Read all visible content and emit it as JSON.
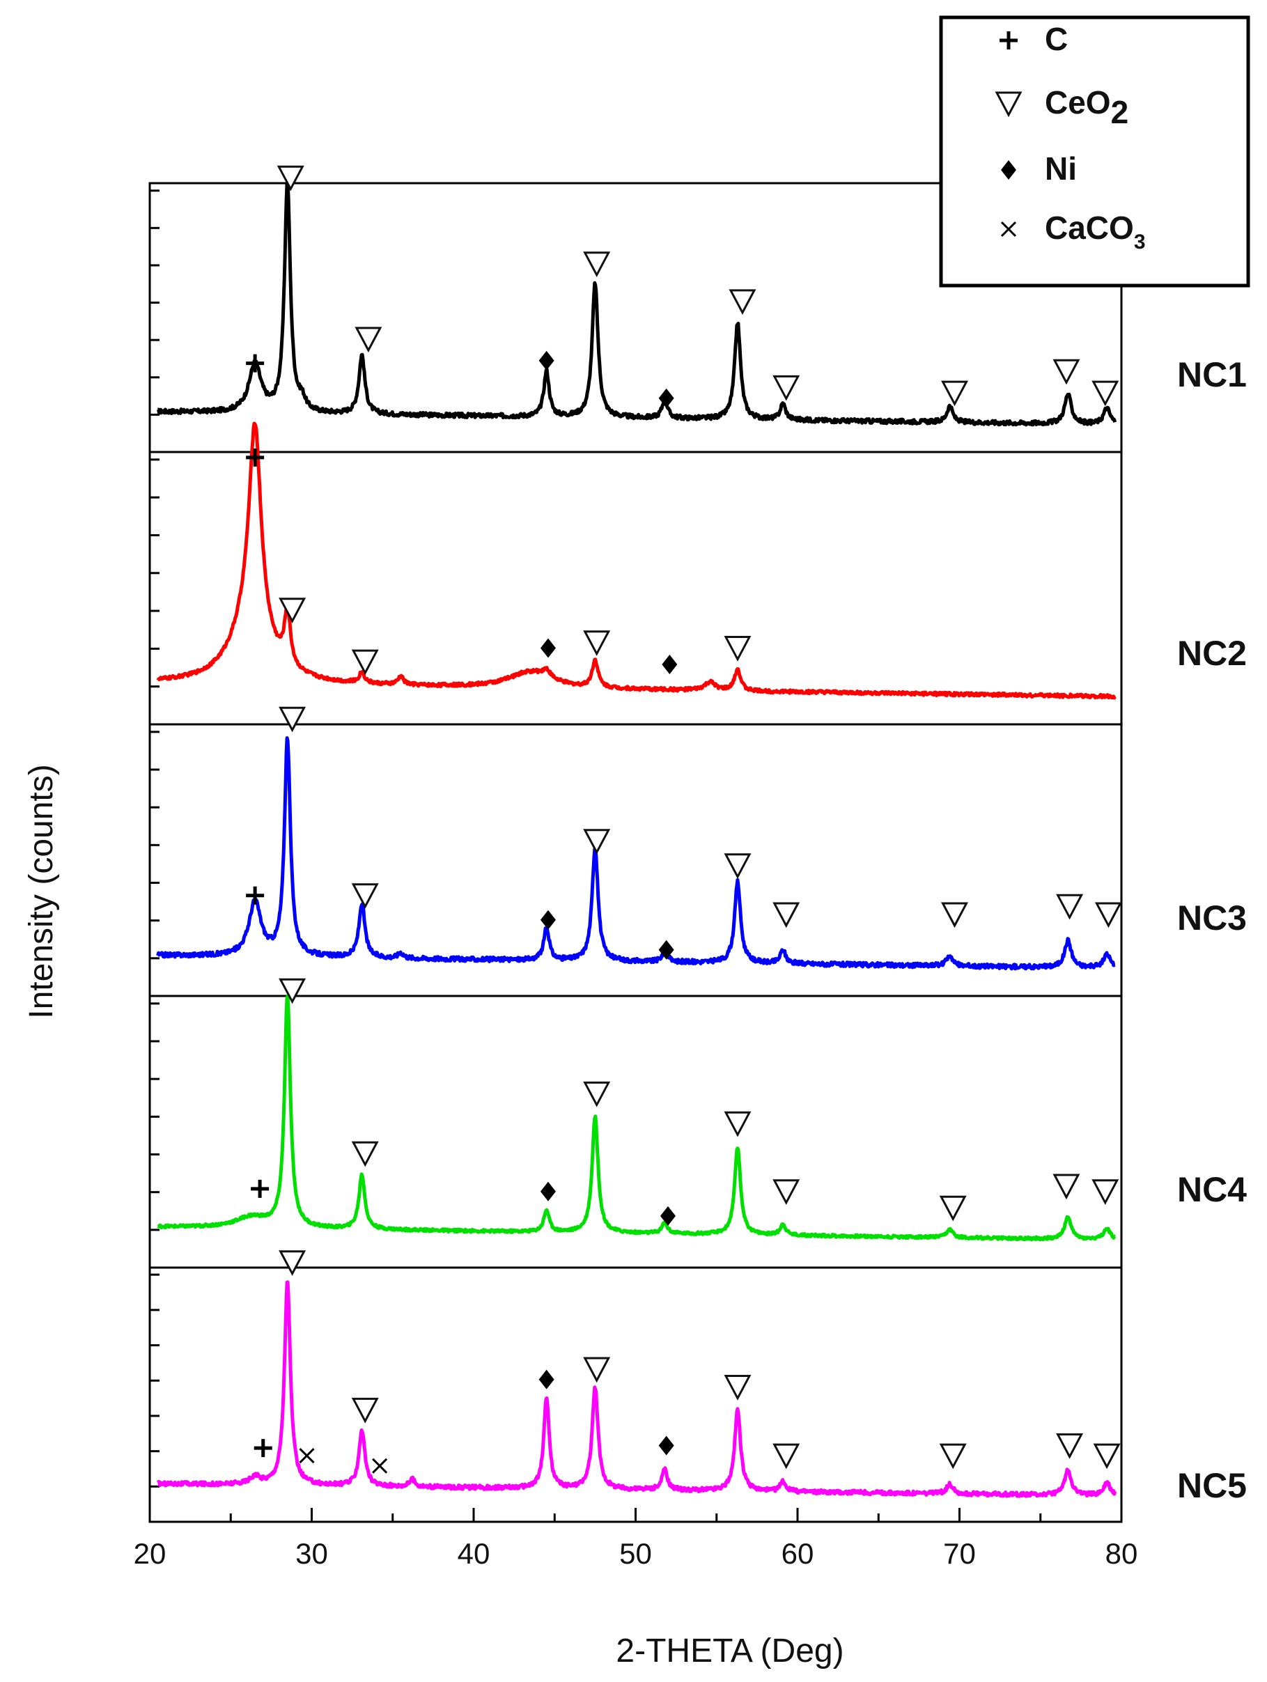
{
  "chart_data": {
    "type": "line",
    "title": "",
    "xlabel": "2-THETA (Deg)",
    "ylabel": "Intensity (counts)",
    "xlim": [
      20,
      80
    ],
    "x_ticks": [
      20,
      30,
      40,
      50,
      60,
      70,
      80
    ],
    "grid": false,
    "legend": {
      "placement": "top-right",
      "entries": [
        {
          "symbol": "plus",
          "glyph": "+",
          "label": "C",
          "sub": ""
        },
        {
          "symbol": "triangle-down",
          "glyph": "▽",
          "label": "CeO",
          "sub": "2"
        },
        {
          "symbol": "diamond",
          "glyph": "◆",
          "label": "Ni",
          "sub": ""
        },
        {
          "symbol": "cross",
          "glyph": "×",
          "label": "CaCO",
          "sub": "3"
        }
      ]
    },
    "series": [
      {
        "name": "NC1",
        "color": "#000000",
        "baseline": 0.15,
        "noise": 0.008,
        "peaks": [
          {
            "x": 26.5,
            "h": 0.18,
            "w": 0.45
          },
          {
            "x": 28.5,
            "h": 0.85,
            "w": 0.22
          },
          {
            "x": 29.4,
            "h": 0.04,
            "w": 0.25
          },
          {
            "x": 33.1,
            "h": 0.22,
            "w": 0.22
          },
          {
            "x": 44.5,
            "h": 0.17,
            "w": 0.2
          },
          {
            "x": 47.5,
            "h": 0.5,
            "w": 0.22
          },
          {
            "x": 51.8,
            "h": 0.07,
            "w": 0.2
          },
          {
            "x": 56.3,
            "h": 0.36,
            "w": 0.22
          },
          {
            "x": 59.1,
            "h": 0.06,
            "w": 0.2
          },
          {
            "x": 69.4,
            "h": 0.06,
            "w": 0.22
          },
          {
            "x": 76.7,
            "h": 0.11,
            "w": 0.25
          },
          {
            "x": 79.1,
            "h": 0.06,
            "w": 0.25
          }
        ],
        "markers": [
          {
            "x": 26.5,
            "s": "plus",
            "y": 0.33
          },
          {
            "x": 28.7,
            "s": "triangle-down",
            "y": 1.02
          },
          {
            "x": 33.5,
            "s": "triangle-down",
            "y": 0.42
          },
          {
            "x": 44.5,
            "s": "diamond",
            "y": 0.34
          },
          {
            "x": 47.6,
            "s": "triangle-down",
            "y": 0.7
          },
          {
            "x": 51.9,
            "s": "diamond",
            "y": 0.2
          },
          {
            "x": 56.6,
            "s": "triangle-down",
            "y": 0.56
          },
          {
            "x": 59.3,
            "s": "triangle-down",
            "y": 0.24
          },
          {
            "x": 69.7,
            "s": "triangle-down",
            "y": 0.22
          },
          {
            "x": 76.6,
            "s": "triangle-down",
            "y": 0.3
          },
          {
            "x": 79.0,
            "s": "triangle-down",
            "y": 0.22
          }
        ]
      },
      {
        "name": "NC2",
        "color": "#ff0000",
        "baseline": 0.15,
        "noise": 0.006,
        "peaks": [
          {
            "x": 26.5,
            "h": 0.75,
            "w": 0.45
          },
          {
            "x": 26.2,
            "h": 0.22,
            "w": 1.4
          },
          {
            "x": 28.5,
            "h": 0.2,
            "w": 0.22
          },
          {
            "x": 33.1,
            "h": 0.04,
            "w": 0.2
          },
          {
            "x": 35.5,
            "h": 0.03,
            "w": 0.2
          },
          {
            "x": 43.5,
            "h": 0.06,
            "w": 1.6
          },
          {
            "x": 44.5,
            "h": 0.03,
            "w": 0.3
          },
          {
            "x": 47.5,
            "h": 0.1,
            "w": 0.22
          },
          {
            "x": 54.6,
            "h": 0.03,
            "w": 0.4
          },
          {
            "x": 56.3,
            "h": 0.08,
            "w": 0.22
          }
        ],
        "markers": [
          {
            "x": 26.5,
            "s": "plus",
            "y": 0.98
          },
          {
            "x": 28.8,
            "s": "triangle-down",
            "y": 0.42
          },
          {
            "x": 33.3,
            "s": "triangle-down",
            "y": 0.23
          },
          {
            "x": 44.6,
            "s": "diamond",
            "y": 0.28
          },
          {
            "x": 47.6,
            "s": "triangle-down",
            "y": 0.3
          },
          {
            "x": 52.1,
            "s": "diamond",
            "y": 0.22
          },
          {
            "x": 56.3,
            "s": "triangle-down",
            "y": 0.28
          }
        ]
      },
      {
        "name": "NC3",
        "color": "#0000ff",
        "baseline": 0.15,
        "noise": 0.008,
        "peaks": [
          {
            "x": 26.5,
            "h": 0.2,
            "w": 0.45
          },
          {
            "x": 28.5,
            "h": 0.8,
            "w": 0.22
          },
          {
            "x": 33.1,
            "h": 0.2,
            "w": 0.22
          },
          {
            "x": 35.5,
            "h": 0.02,
            "w": 0.2
          },
          {
            "x": 44.5,
            "h": 0.12,
            "w": 0.2
          },
          {
            "x": 47.5,
            "h": 0.42,
            "w": 0.22
          },
          {
            "x": 51.8,
            "h": 0.04,
            "w": 0.2
          },
          {
            "x": 56.3,
            "h": 0.3,
            "w": 0.22
          },
          {
            "x": 59.1,
            "h": 0.05,
            "w": 0.2
          },
          {
            "x": 69.4,
            "h": 0.04,
            "w": 0.22
          },
          {
            "x": 76.7,
            "h": 0.1,
            "w": 0.25
          },
          {
            "x": 79.1,
            "h": 0.05,
            "w": 0.25
          }
        ],
        "markers": [
          {
            "x": 26.5,
            "s": "plus",
            "y": 0.37
          },
          {
            "x": 28.8,
            "s": "triangle-down",
            "y": 1.02
          },
          {
            "x": 33.3,
            "s": "triangle-down",
            "y": 0.37
          },
          {
            "x": 44.6,
            "s": "diamond",
            "y": 0.28
          },
          {
            "x": 47.6,
            "s": "triangle-down",
            "y": 0.57
          },
          {
            "x": 51.9,
            "s": "diamond",
            "y": 0.17
          },
          {
            "x": 56.3,
            "s": "triangle-down",
            "y": 0.48
          },
          {
            "x": 59.3,
            "s": "triangle-down",
            "y": 0.3
          },
          {
            "x": 69.7,
            "s": "triangle-down",
            "y": 0.3
          },
          {
            "x": 76.8,
            "s": "triangle-down",
            "y": 0.33
          },
          {
            "x": 79.2,
            "s": "triangle-down",
            "y": 0.3
          }
        ]
      },
      {
        "name": "NC4",
        "color": "#00e000",
        "baseline": 0.15,
        "noise": 0.005,
        "peaks": [
          {
            "x": 26.3,
            "h": 0.04,
            "w": 1.2
          },
          {
            "x": 28.5,
            "h": 0.85,
            "w": 0.22
          },
          {
            "x": 33.1,
            "h": 0.2,
            "w": 0.22
          },
          {
            "x": 44.5,
            "h": 0.08,
            "w": 0.2
          },
          {
            "x": 47.5,
            "h": 0.43,
            "w": 0.22
          },
          {
            "x": 51.8,
            "h": 0.04,
            "w": 0.2
          },
          {
            "x": 56.3,
            "h": 0.32,
            "w": 0.22
          },
          {
            "x": 59.1,
            "h": 0.04,
            "w": 0.2
          },
          {
            "x": 69.4,
            "h": 0.03,
            "w": 0.22
          },
          {
            "x": 76.7,
            "h": 0.08,
            "w": 0.25
          },
          {
            "x": 79.1,
            "h": 0.04,
            "w": 0.25
          }
        ],
        "markers": [
          {
            "x": 26.8,
            "s": "plus",
            "y": 0.29
          },
          {
            "x": 28.8,
            "s": "triangle-down",
            "y": 1.02
          },
          {
            "x": 33.3,
            "s": "triangle-down",
            "y": 0.42
          },
          {
            "x": 44.6,
            "s": "diamond",
            "y": 0.28
          },
          {
            "x": 47.6,
            "s": "triangle-down",
            "y": 0.64
          },
          {
            "x": 52.0,
            "s": "diamond",
            "y": 0.19
          },
          {
            "x": 56.3,
            "s": "triangle-down",
            "y": 0.53
          },
          {
            "x": 59.3,
            "s": "triangle-down",
            "y": 0.28
          },
          {
            "x": 69.6,
            "s": "triangle-down",
            "y": 0.22
          },
          {
            "x": 76.6,
            "s": "triangle-down",
            "y": 0.3
          },
          {
            "x": 79.0,
            "s": "triangle-down",
            "y": 0.28
          }
        ]
      },
      {
        "name": "NC5",
        "color": "#ff00ff",
        "baseline": 0.15,
        "noise": 0.008,
        "peaks": [
          {
            "x": 26.5,
            "h": 0.03,
            "w": 0.4
          },
          {
            "x": 28.5,
            "h": 0.8,
            "w": 0.22
          },
          {
            "x": 33.1,
            "h": 0.22,
            "w": 0.22
          },
          {
            "x": 36.2,
            "h": 0.03,
            "w": 0.2
          },
          {
            "x": 44.5,
            "h": 0.36,
            "w": 0.2
          },
          {
            "x": 47.5,
            "h": 0.4,
            "w": 0.22
          },
          {
            "x": 51.8,
            "h": 0.08,
            "w": 0.2
          },
          {
            "x": 56.3,
            "h": 0.32,
            "w": 0.22
          },
          {
            "x": 59.1,
            "h": 0.04,
            "w": 0.2
          },
          {
            "x": 69.4,
            "h": 0.04,
            "w": 0.22
          },
          {
            "x": 76.7,
            "h": 0.1,
            "w": 0.25
          },
          {
            "x": 79.1,
            "h": 0.05,
            "w": 0.25
          }
        ],
        "markers": [
          {
            "x": 27.0,
            "s": "plus",
            "y": 0.29
          },
          {
            "x": 29.7,
            "s": "cross",
            "y": 0.26
          },
          {
            "x": 28.8,
            "s": "triangle-down",
            "y": 1.02
          },
          {
            "x": 33.3,
            "s": "triangle-down",
            "y": 0.44
          },
          {
            "x": 34.2,
            "s": "cross",
            "y": 0.22
          },
          {
            "x": 44.5,
            "s": "diamond",
            "y": 0.56
          },
          {
            "x": 47.6,
            "s": "triangle-down",
            "y": 0.6
          },
          {
            "x": 51.9,
            "s": "diamond",
            "y": 0.3
          },
          {
            "x": 56.3,
            "s": "triangle-down",
            "y": 0.53
          },
          {
            "x": 59.3,
            "s": "triangle-down",
            "y": 0.26
          },
          {
            "x": 69.6,
            "s": "triangle-down",
            "y": 0.26
          },
          {
            "x": 76.8,
            "s": "triangle-down",
            "y": 0.3
          },
          {
            "x": 79.1,
            "s": "triangle-down",
            "y": 0.26
          }
        ]
      }
    ]
  }
}
